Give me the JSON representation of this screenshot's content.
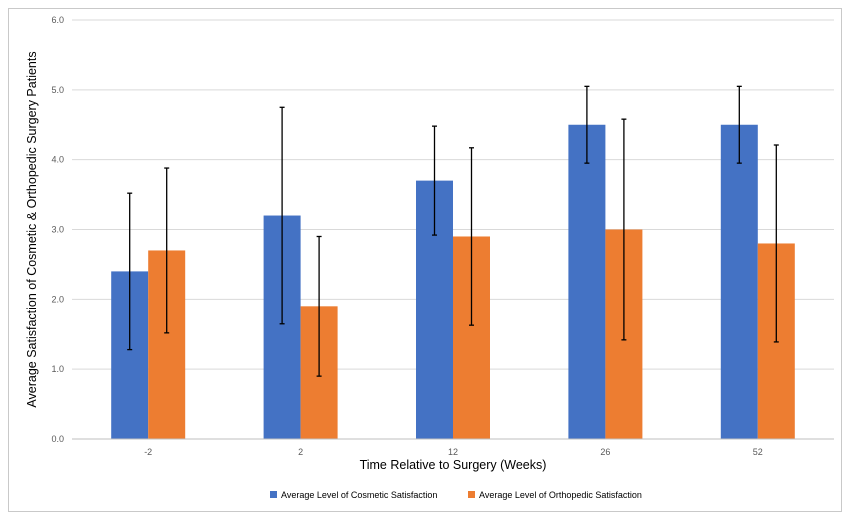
{
  "chart_data": {
    "type": "bar",
    "title": "",
    "xlabel": "Time Relative to Surgery (Weeks)",
    "ylabel": "Average Satisfaction of Cosmetic & Orthopedic Surgery Patients",
    "categories": [
      "-2",
      "2",
      "12",
      "26",
      "52"
    ],
    "ylim": [
      0,
      6
    ],
    "yticks": [
      "0.0",
      "1.0",
      "2.0",
      "3.0",
      "4.0",
      "5.0",
      "6.0"
    ],
    "grid": true,
    "legend_position": "bottom",
    "series": [
      {
        "name": "Average Level of Cosmetic Satisfaction",
        "color": "#4472C4",
        "values": [
          2.4,
          3.2,
          3.7,
          4.5,
          4.5
        ],
        "error_low": [
          1.28,
          1.65,
          2.92,
          3.95,
          3.95
        ],
        "error_high": [
          3.52,
          4.75,
          4.48,
          5.05,
          5.05
        ]
      },
      {
        "name": "Average Level of Orthopedic Satisfaction",
        "color": "#ED7D31",
        "values": [
          2.7,
          1.9,
          2.9,
          3.0,
          2.8
        ],
        "error_low": [
          1.52,
          0.9,
          1.63,
          1.42,
          1.39
        ],
        "error_high": [
          3.88,
          2.9,
          4.17,
          4.58,
          4.21
        ]
      }
    ]
  }
}
